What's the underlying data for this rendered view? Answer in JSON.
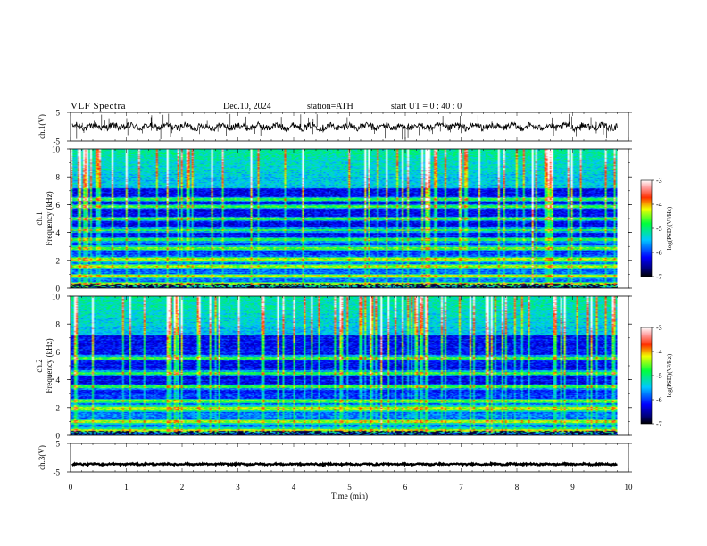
{
  "header": {
    "title": "VLF  Spectra",
    "date": "Dec.10, 2024",
    "station": "station=ATH",
    "start": "start  UT  =    0  : 40 : 0"
  },
  "chart_data": {
    "type": "heatmap",
    "xlabel": "Time  (min)",
    "xlim": [
      0,
      10
    ],
    "xticks": [
      0,
      1,
      2,
      3,
      4,
      5,
      6,
      7,
      8,
      9,
      10
    ],
    "data_end_min": 9.8,
    "panels": [
      {
        "name": "ch1-waveform",
        "type": "line",
        "ylabel": "ch.1(V)",
        "ylim": [
          -5,
          5
        ],
        "yticks": [
          5,
          -5
        ],
        "baseline": 0,
        "amplitude": 1.2
      },
      {
        "name": "ch1-spectrogram",
        "type": "heatmap",
        "ylabel_top": "ch.1",
        "ylabel": "Frequency  (kHz)",
        "ylim": [
          0,
          10
        ],
        "yticks": [
          0,
          2,
          4,
          6,
          8,
          10
        ],
        "colorbar_label": "log(PSD)(V²/Hz)",
        "colorbar_ticks": [
          -3,
          -4,
          -5,
          -6,
          -7
        ],
        "colorbar_range": [
          -7,
          -3
        ],
        "bands_khz": [
          0.3,
          0.9,
          1.6,
          2.1,
          2.9,
          3.5,
          4.2,
          5.0,
          5.9,
          6.4
        ],
        "spheric_density": 0.55
      },
      {
        "name": "ch2-spectrogram",
        "type": "heatmap",
        "ylabel_top": "ch.2",
        "ylabel": "Frequency  (kHz)",
        "ylim": [
          0,
          10
        ],
        "yticks": [
          0,
          2,
          4,
          6,
          8,
          10
        ],
        "colorbar_label": "log(PSD)(V²/Hz)",
        "colorbar_ticks": [
          -3,
          -4,
          -5,
          -6,
          -7
        ],
        "colorbar_range": [
          -7,
          -3
        ],
        "bands_khz": [
          0.4,
          1.0,
          1.9,
          2.0,
          2.5,
          3.5,
          4.5,
          5.6
        ],
        "spheric_density": 0.65
      },
      {
        "name": "ch3-waveform",
        "type": "line",
        "ylabel": "ch.3(V)",
        "ylim": [
          -5,
          5
        ],
        "yticks": [
          5,
          -5
        ],
        "baseline": -2.3,
        "amplitude": 0.25
      }
    ]
  }
}
